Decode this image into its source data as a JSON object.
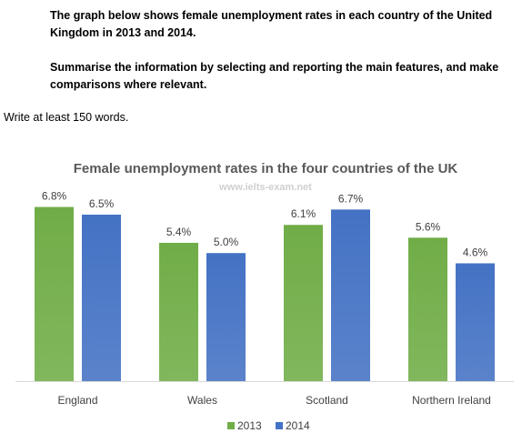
{
  "task": {
    "prompt": "The graph below shows female unemployment rates in each country of the United Kingdom in 2013 and 2014.",
    "instruction": "Summarise the information by selecting and reporting the main features, and make comparisons where relevant.",
    "word_count": "Write at least 150 words."
  },
  "chart_data": {
    "type": "bar",
    "title": "Female unemployment rates in the four countries of the UK",
    "watermark": "www.ielts-exam.net",
    "categories": [
      "England",
      "Wales",
      "Scotland",
      "Northern Ireland"
    ],
    "series": [
      {
        "name": "2013",
        "values": [
          6.8,
          5.4,
          6.1,
          5.6
        ],
        "labels": [
          "6.8%",
          "5.4%",
          "6.1%",
          "5.6%"
        ],
        "color": "#70ad47"
      },
      {
        "name": "2014",
        "values": [
          6.5,
          5.0,
          6.7,
          4.6
        ],
        "labels": [
          "6.5%",
          "5.0%",
          "6.7%",
          "4.6%"
        ],
        "color": "#4472c4"
      }
    ],
    "ylim": [
      0,
      7
    ],
    "grid": false,
    "legend": "bottom"
  }
}
